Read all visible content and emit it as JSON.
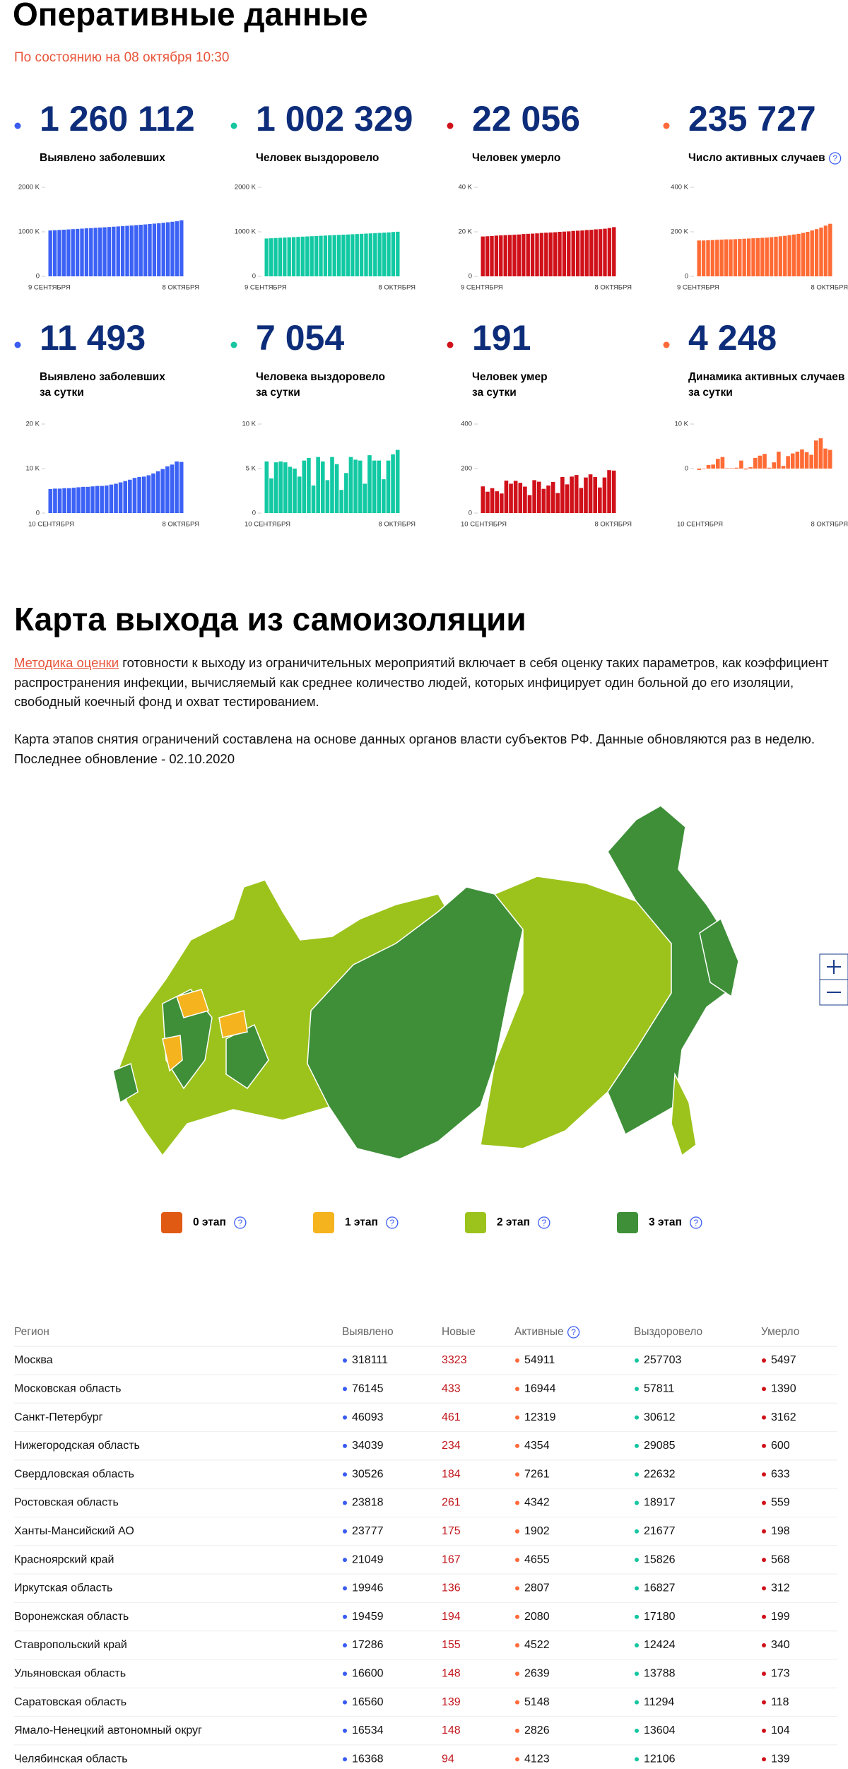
{
  "header": {
    "title": "Оперативные данные",
    "subtitle": "По состоянию на 08 октября 10:30"
  },
  "cards": [
    {
      "value": "1 260 112",
      "label": [
        "Выявлено заболевших"
      ],
      "color": "#3c62f5",
      "dot": "#3a5cf0",
      "ylim": [
        0,
        2000
      ],
      "yticks": [
        0,
        {
          "value": 1000,
          "label": "1000 K"
        },
        {
          "value": 2000,
          "label": "2000 K"
        }
      ],
      "xlabels": [
        "9 СЕНТЯБРЯ",
        "8 ОКТЯБРЯ"
      ],
      "values": [
        1030,
        1036,
        1042,
        1048,
        1054,
        1060,
        1066,
        1072,
        1078,
        1084,
        1090,
        1096,
        1102,
        1108,
        1115,
        1121,
        1128,
        1135,
        1142,
        1150,
        1158,
        1166,
        1175,
        1184,
        1193,
        1203,
        1214,
        1226,
        1237,
        1260
      ]
    },
    {
      "value": "1 002 329",
      "label": [
        "Человек выздоровело"
      ],
      "color": "#12c9a3",
      "dot": "#15c6a0",
      "ylim": [
        0,
        2000
      ],
      "yticks": [
        0,
        {
          "value": 1000,
          "label": "1000 K"
        },
        {
          "value": 2000,
          "label": "2000 K"
        }
      ],
      "xlabels": [
        "9 СЕНТЯБРЯ",
        "8 ОКТЯБРЯ"
      ],
      "values": [
        850,
        855,
        860,
        866,
        871,
        876,
        881,
        886,
        891,
        896,
        901,
        906,
        911,
        916,
        921,
        926,
        931,
        936,
        940,
        945,
        950,
        955,
        960,
        965,
        970,
        975,
        981,
        987,
        996,
        1002
      ]
    },
    {
      "value": "22 056",
      "label": [
        "Человек умерло"
      ],
      "color": "#d0111a",
      "dot": "#d0121b",
      "ylim": [
        0,
        40
      ],
      "yticks": [
        0,
        {
          "value": 20,
          "label": "20 K"
        },
        {
          "value": 40,
          "label": "40 K"
        }
      ],
      "xlabels": [
        "9 СЕНТЯБРЯ",
        "8 ОКТЯБРЯ"
      ],
      "values": [
        17.9,
        18.0,
        18.1,
        18.3,
        18.4,
        18.5,
        18.6,
        18.7,
        18.8,
        19.0,
        19.1,
        19.2,
        19.3,
        19.5,
        19.6,
        19.7,
        19.8,
        20.0,
        20.1,
        20.2,
        20.4,
        20.5,
        20.6,
        20.8,
        20.9,
        21.1,
        21.2,
        21.4,
        21.7,
        22.1
      ]
    },
    {
      "value": "235 727",
      "label": [
        "Число активных случаев"
      ],
      "help": true,
      "color": "#ff6b35",
      "dot": "#ff6a3a",
      "ylim": [
        0,
        400
      ],
      "yticks": [
        0,
        {
          "value": 200,
          "label": "200 K"
        },
        {
          "value": 400,
          "label": "400 K"
        }
      ],
      "xlabels": [
        "9 СЕНТЯБРЯ",
        "8 ОКТЯБРЯ"
      ],
      "values": [
        161,
        161,
        162,
        163,
        164,
        165,
        166,
        166,
        167,
        168,
        169,
        170,
        171,
        172,
        173,
        174,
        176,
        178,
        180,
        182,
        185,
        188,
        191,
        195,
        200,
        206,
        212,
        219,
        228,
        236
      ]
    },
    {
      "value": "11 493",
      "label": [
        "Выявлено заболевших",
        "за сутки"
      ],
      "color": "#3c62f5",
      "dot": "#3a5cf0",
      "ylim": [
        0,
        20
      ],
      "yticks": [
        0,
        {
          "value": 10,
          "label": "10 K"
        },
        {
          "value": 20,
          "label": "20 K"
        }
      ],
      "xlabels": [
        "10 СЕНТЯБРЯ",
        "8 ОКТЯБРЯ"
      ],
      "values": [
        5.4,
        5.5,
        5.5,
        5.6,
        5.6,
        5.7,
        5.8,
        5.9,
        5.9,
        6.0,
        6.1,
        6.1,
        6.2,
        6.4,
        6.6,
        6.9,
        7.2,
        7.5,
        7.9,
        8.1,
        8.2,
        8.5,
        8.9,
        9.4,
        9.9,
        10.5,
        10.9,
        11.6,
        11.5
      ]
    },
    {
      "value": "7 054",
      "label": [
        "Человека выздоровело",
        "за сутки"
      ],
      "color": "#12c9a3",
      "dot": "#15c6a0",
      "ylim": [
        0,
        10
      ],
      "yticks": [
        0,
        {
          "value": 5,
          "label": "5 K"
        },
        {
          "value": 10,
          "label": "10 K"
        }
      ],
      "xlabels": [
        "10 СЕНТЯБРЯ",
        "8 ОКТЯБРЯ"
      ],
      "values": [
        5.8,
        3.9,
        5.7,
        5.8,
        5.7,
        5.2,
        5.0,
        4.1,
        5.9,
        6.2,
        3.1,
        6.3,
        5.8,
        3.7,
        6.3,
        5.5,
        2.6,
        4.5,
        6.3,
        6.0,
        5.9,
        3.3,
        6.5,
        5.9,
        5.9,
        3.8,
        5.9,
        6.6,
        7.1
      ]
    },
    {
      "value": "191",
      "label": [
        "Человек умер",
        "за сутки"
      ],
      "color": "#d0111a",
      "dot": "#d0121b",
      "ylim": [
        0,
        400
      ],
      "yticks": [
        0,
        200,
        400
      ],
      "xlabels": [
        "10 СЕНТЯБРЯ",
        "8 ОКТЯБРЯ"
      ],
      "values": [
        120,
        96,
        112,
        98,
        88,
        146,
        132,
        145,
        136,
        119,
        81,
        148,
        141,
        109,
        124,
        140,
        90,
        162,
        129,
        164,
        171,
        113,
        160,
        174,
        162,
        115,
        160,
        193,
        191
      ]
    },
    {
      "value": "4 248",
      "label": [
        "Динамика активных случаев",
        "за сутки"
      ],
      "color": "#ff6b35",
      "dot": "#ff6a3a",
      "ylim": [
        -10,
        10
      ],
      "yticks": [
        0,
        {
          "value": 10,
          "label": "10 K"
        }
      ],
      "xlabels": [
        "10 СЕНТЯБРЯ",
        "8 ОКТЯБРЯ"
      ],
      "values": [
        -0.3,
        -0.1,
        0.8,
        0.9,
        2.2,
        2.6,
        0.1,
        0.1,
        0.2,
        1.8,
        -0.2,
        0.3,
        2.4,
        2.9,
        3.3,
        0.2,
        1.4,
        3.8,
        0.6,
        2.8,
        3.4,
        3.8,
        4.3,
        3.7,
        3.1,
        6.3,
        6.8,
        4.5,
        4.2
      ]
    }
  ],
  "map": {
    "title": "Карта выхода из самоизоляции",
    "link": "Методика оценки",
    "text1": "готовности к выходу из ограничительных мероприятий включает в себя оценку таких параметров, как коэффициент распространения инфекции, вычисляемый как среднее количество людей, которых инфицирует один больной до его изоляции, свободный коечный фонд и охват тестированием.",
    "text2": "Карта этапов снятия ограничений составлена на основе данных органов власти субъектов РФ. Данные обновляются раз в неделю. Последнее обновление - 02.10.2020",
    "legend": [
      {
        "name": "0 этап",
        "color": "#e05a14"
      },
      {
        "name": "1 этап",
        "color": "#f5b31e"
      },
      {
        "name": "2 этап",
        "color": "#9cc31c"
      },
      {
        "name": "3 этап",
        "color": "#3e8f38"
      }
    ]
  },
  "table": {
    "header": [
      "Регион",
      "Выявлено",
      "Новые",
      "Активные",
      "Выздоровело",
      "Умерло"
    ],
    "rows": [
      [
        "Москва",
        318111,
        3323,
        54911,
        257703,
        5497
      ],
      [
        "Московская область",
        76145,
        433,
        16944,
        57811,
        1390
      ],
      [
        "Санкт-Петербург",
        46093,
        461,
        12319,
        30612,
        3162
      ],
      [
        "Нижегородская область",
        34039,
        234,
        4354,
        29085,
        600
      ],
      [
        "Свердловская область",
        30526,
        184,
        7261,
        22632,
        633
      ],
      [
        "Ростовская область",
        23818,
        261,
        4342,
        18917,
        559
      ],
      [
        "Ханты-Мансийский АО",
        23777,
        175,
        1902,
        21677,
        198
      ],
      [
        "Красноярский край",
        21049,
        167,
        4655,
        15826,
        568
      ],
      [
        "Иркутская область",
        19946,
        136,
        2807,
        16827,
        312
      ],
      [
        "Воронежская область",
        19459,
        194,
        2080,
        17180,
        199
      ],
      [
        "Ставропольский край",
        17286,
        155,
        4522,
        12424,
        340
      ],
      [
        "Ульяновская область",
        16600,
        148,
        2639,
        13788,
        173
      ],
      [
        "Саратовская область",
        16560,
        139,
        5148,
        11294,
        118
      ],
      [
        "Ямало-Ненецкий автономный округ",
        16534,
        148,
        2826,
        13604,
        104
      ],
      [
        "Челябинская область",
        16368,
        94,
        4123,
        12106,
        139
      ]
    ]
  }
}
